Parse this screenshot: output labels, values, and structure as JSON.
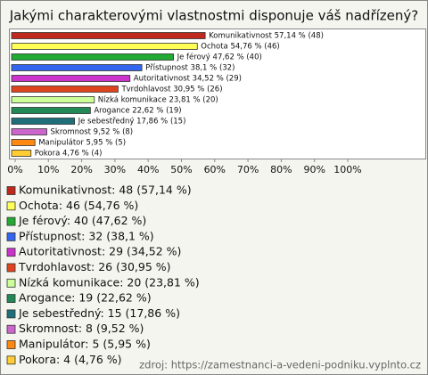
{
  "chart_data": {
    "type": "hbar",
    "title": "Jakými charakterovými vlastnostmi disponuje váš nadřízený?",
    "values": [
      57.14,
      54.76,
      47.62,
      38.1,
      34.52,
      30.95,
      23.81,
      22.62,
      17.86,
      9.52,
      5.95,
      4.76
    ],
    "counts": [
      48,
      46,
      40,
      32,
      29,
      26,
      20,
      19,
      15,
      8,
      5,
      4
    ],
    "value_labels": [
      "Komunikativnost 57,14 % (48)",
      "Ochota 54,76 % (46)",
      "Je férový 47,62 % (40)",
      "Přístupnost 38,1 % (32)",
      "Autoritativnost 34,52 % (29)",
      "Tvrdohlavost 30,95 % (26)",
      "Nízká komunikace 23,81 % (20)",
      "Arogance 22,62 % (19)",
      "Je sebestředný 17,86 % (15)",
      "Skromnost 9,52 % (8)",
      "Manipulátor 5,95 % (5)",
      "Pokora 4,76 % (4)"
    ],
    "legend_labels": [
      "Komunikativnost: 48 (57,14 %)",
      "Ochota: 46 (54,76 %)",
      "Je férový: 40 (47,62 %)",
      "Přístupnost: 32 (38,1 %)",
      "Autoritativnost: 29 (34,52 %)",
      "Tvrdohlavost: 26 (30,95 %)",
      "Nízká komunikace: 20 (23,81 %)",
      "Arogance: 19 (22,62 %)",
      "Je sebestředný: 15 (17,86 %)",
      "Skromnost: 8 (9,52 %)",
      "Manipulátor: 5 (5,95 %)",
      "Pokora: 4 (4,76 %)"
    ],
    "colors": [
      "#c0281e",
      "#ffff55",
      "#22aa33",
      "#3366ee",
      "#cc33cc",
      "#e0441e",
      "#ccff99",
      "#228855",
      "#1f6f7a",
      "#cc66cc",
      "#ff8811",
      "#ffcc33"
    ],
    "xlim": [
      0,
      100
    ],
    "xticks": [
      {
        "value": 0,
        "label": "0%"
      },
      {
        "value": 10,
        "label": "10%"
      },
      {
        "value": 20,
        "label": "20%"
      },
      {
        "value": 30,
        "label": "30%"
      },
      {
        "value": 40,
        "label": "40%"
      },
      {
        "value": 50,
        "label": "50%"
      },
      {
        "value": 60,
        "label": "60%"
      },
      {
        "value": 70,
        "label": "70%"
      },
      {
        "value": 80,
        "label": "80%"
      },
      {
        "value": 90,
        "label": "90%"
      },
      {
        "value": 100,
        "label": "100%"
      }
    ],
    "grid": false,
    "source": "zdroj: https://zamestnanci-a-vedeni-podniku.vyplnto.cz"
  }
}
